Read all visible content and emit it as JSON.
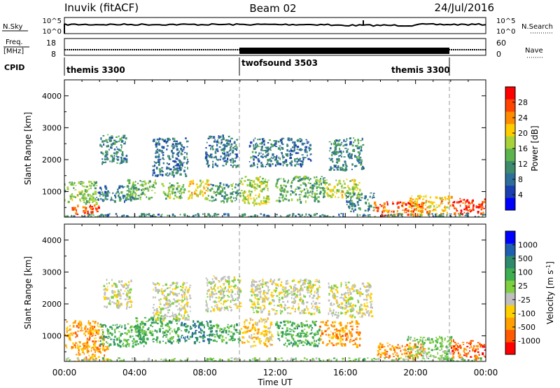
{
  "header": {
    "station": "Inuvik (fitACF)",
    "beam": "Beam 02",
    "date": "24/Jul/2016"
  },
  "nsky_panel": {
    "left_label": "N.Sky",
    "left_ticks": [
      "10^5",
      "10^0"
    ],
    "right_ticks": [
      "10^5",
      "10^0"
    ],
    "right_label": "N.Search",
    "right_label_style": "dotted underline"
  },
  "freq_panel": {
    "left_label_line1": "Freq.",
    "left_label_line2": "[MHz]",
    "left_ticks": [
      "18",
      "8"
    ],
    "right_ticks": [
      "60",
      "0"
    ],
    "right_label": "Nave"
  },
  "cpid_panel": {
    "label": "CPID",
    "modes": [
      {
        "name": "themis 3300",
        "start_h": 0,
        "end_h": 10
      },
      {
        "name": "twofsound 3503",
        "start_h": 10,
        "end_h": 22
      },
      {
        "name": "themis 3300",
        "start_h": 22,
        "end_h": 24
      }
    ]
  },
  "chart_data": [
    {
      "type": "heatmap",
      "name": "power",
      "ylabel": "Slant Range [km]",
      "yticks": [
        1000,
        2000,
        3000,
        4000
      ],
      "ylim": [
        200,
        4500
      ],
      "xlim": [
        0,
        24
      ],
      "colorbar": {
        "label": "Power [dB]",
        "ticks": [
          "28",
          "24",
          "20",
          "16",
          "12",
          "8",
          "4"
        ],
        "colors": [
          "#0000ff",
          "#1a3fb0",
          "#2e6e9a",
          "#3e8a6c",
          "#5db34d",
          "#a8d23a",
          "#ffcc00",
          "#ff8c00",
          "#ff4500",
          "#ff0000"
        ],
        "range": [
          0,
          30
        ]
      },
      "regions": [
        {
          "x0": 0.0,
          "x1": 1.8,
          "y0": 650,
          "y1": 1350,
          "level": 14
        },
        {
          "x0": 0.4,
          "x1": 2.0,
          "y0": 300,
          "y1": 600,
          "level": 25
        },
        {
          "x0": 1.8,
          "x1": 4.2,
          "y0": 700,
          "y1": 1200,
          "level": 9
        },
        {
          "x0": 2.0,
          "x1": 3.5,
          "y0": 1900,
          "y1": 2800,
          "level": 9
        },
        {
          "x0": 3.5,
          "x1": 5.2,
          "y0": 800,
          "y1": 1400,
          "level": 13
        },
        {
          "x0": 5.0,
          "x1": 7.0,
          "y0": 1500,
          "y1": 2700,
          "level": 8
        },
        {
          "x0": 5.5,
          "x1": 6.8,
          "y0": 800,
          "y1": 1300,
          "level": 14
        },
        {
          "x0": 7.0,
          "x1": 8.2,
          "y0": 800,
          "y1": 1400,
          "level": 18
        },
        {
          "x0": 8.0,
          "x1": 9.8,
          "y0": 1800,
          "y1": 2800,
          "level": 8
        },
        {
          "x0": 8.2,
          "x1": 10.0,
          "y0": 700,
          "y1": 1300,
          "level": 11
        },
        {
          "x0": 10.0,
          "x1": 11.6,
          "y0": 600,
          "y1": 1500,
          "level": 16
        },
        {
          "x0": 10.5,
          "x1": 14.0,
          "y0": 1800,
          "y1": 2700,
          "level": 8
        },
        {
          "x0": 12.0,
          "x1": 14.8,
          "y0": 700,
          "y1": 1500,
          "level": 12
        },
        {
          "x0": 14.8,
          "x1": 16.8,
          "y0": 800,
          "y1": 1400,
          "level": 17
        },
        {
          "x0": 15.0,
          "x1": 17.0,
          "y0": 1700,
          "y1": 2700,
          "level": 9
        },
        {
          "x0": 16.0,
          "x1": 17.6,
          "y0": 400,
          "y1": 1000,
          "level": 9
        },
        {
          "x0": 17.6,
          "x1": 20.4,
          "y0": 250,
          "y1": 700,
          "level": 24
        },
        {
          "x0": 19.6,
          "x1": 22.0,
          "y0": 300,
          "y1": 900,
          "level": 20
        },
        {
          "x0": 22.0,
          "x1": 24.0,
          "y0": 300,
          "y1": 800,
          "level": 26
        },
        {
          "x0": 0.0,
          "x1": 24.0,
          "y0": 200,
          "y1": 330,
          "level": 9
        }
      ]
    },
    {
      "type": "heatmap",
      "name": "velocity",
      "ylabel": "Slant Range [km]",
      "yticks": [
        1000,
        2000,
        3000,
        4000
      ],
      "ylim": [
        200,
        4500
      ],
      "xlim": [
        0,
        24
      ],
      "colorbar": {
        "label": "Velocity [m s^-1]",
        "ticks": [
          "1000",
          "500",
          "100",
          "25",
          "-25",
          "-100",
          "-500",
          "-1000"
        ],
        "colors": [
          "#ff0000",
          "#ff5a00",
          "#ff9f00",
          "#ffd000",
          "#bfbfbf",
          "#7fd040",
          "#3fae50",
          "#2e8a6c",
          "#1f5fb0",
          "#0000ff"
        ]
      },
      "regions": [
        {
          "x0": 0.0,
          "x1": 2.2,
          "y0": 600,
          "y1": 1500,
          "level": 2
        },
        {
          "x0": 0.5,
          "x1": 2.5,
          "y0": 200,
          "y1": 700,
          "level": 2
        },
        {
          "x0": 2.0,
          "x1": 4.5,
          "y0": 700,
          "y1": 1400,
          "level": 6
        },
        {
          "x0": 2.2,
          "x1": 3.8,
          "y0": 1900,
          "y1": 2800,
          "level": 4
        },
        {
          "x0": 4.0,
          "x1": 6.5,
          "y0": 800,
          "y1": 1600,
          "level": 6
        },
        {
          "x0": 5.0,
          "x1": 7.2,
          "y0": 1500,
          "y1": 2700,
          "level": 4
        },
        {
          "x0": 6.5,
          "x1": 8.4,
          "y0": 800,
          "y1": 1500,
          "level": 7
        },
        {
          "x0": 8.0,
          "x1": 10.0,
          "y0": 1800,
          "y1": 2900,
          "level": 4
        },
        {
          "x0": 8.4,
          "x1": 10.0,
          "y0": 800,
          "y1": 1400,
          "level": 6
        },
        {
          "x0": 10.0,
          "x1": 11.8,
          "y0": 700,
          "y1": 1600,
          "level": 3
        },
        {
          "x0": 10.5,
          "x1": 14.5,
          "y0": 1700,
          "y1": 2800,
          "level": 4
        },
        {
          "x0": 12.0,
          "x1": 14.5,
          "y0": 700,
          "y1": 1500,
          "level": 6
        },
        {
          "x0": 14.5,
          "x1": 16.8,
          "y0": 700,
          "y1": 1500,
          "level": 2
        },
        {
          "x0": 15.0,
          "x1": 17.5,
          "y0": 1600,
          "y1": 2700,
          "level": 4
        },
        {
          "x0": 17.8,
          "x1": 20.5,
          "y0": 300,
          "y1": 800,
          "level": 2
        },
        {
          "x0": 19.5,
          "x1": 22.0,
          "y0": 300,
          "y1": 1000,
          "level": 5
        },
        {
          "x0": 22.0,
          "x1": 24.0,
          "y0": 300,
          "y1": 900,
          "level": 1
        },
        {
          "x0": 0.0,
          "x1": 24.0,
          "y0": 200,
          "y1": 330,
          "level": 5
        }
      ]
    }
  ],
  "x_axis": {
    "ticks": [
      "00:00",
      "04:00",
      "08:00",
      "12:00",
      "16:00",
      "20:00",
      "00:00"
    ],
    "label": "Time UT"
  }
}
